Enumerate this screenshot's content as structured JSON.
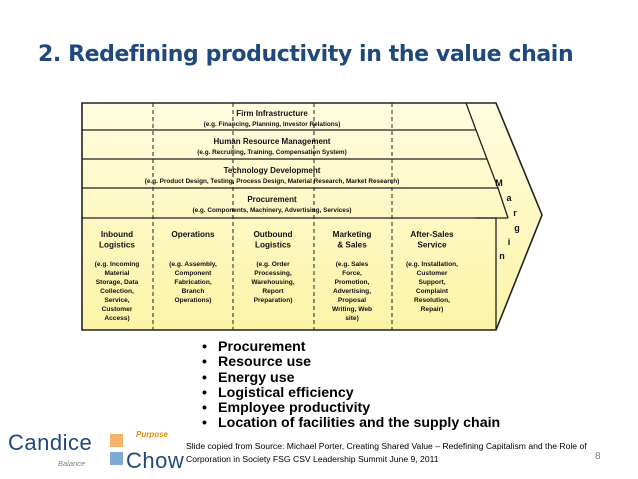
{
  "slide": {
    "title": "2. Redefining productivity in the value chain",
    "page_number": "8"
  },
  "diagram": {
    "support": [
      {
        "name": "Firm Infrastructure",
        "detail": "(e.g. Financing, Planning, Investor Relations)"
      },
      {
        "name": "Human Resource Management",
        "detail": "(e.g. Recruiting, Training, Compensation System)"
      },
      {
        "name": "Technology Development",
        "detail": "(e.g. Product Design, Testing, Process Design, Material Research, Market Research)"
      },
      {
        "name": "Procurement",
        "detail": "(e.g. Components, Machinery, Advertising, Services)"
      }
    ],
    "primary": [
      {
        "name": [
          "Inbound",
          "Logistics"
        ],
        "detail": [
          "(e.g. Incoming",
          "Material",
          "Storage, Data",
          "Collection,",
          "Service,",
          "Customer",
          "Access)"
        ]
      },
      {
        "name": [
          "Operations"
        ],
        "detail": [
          "(e.g. Assembly,",
          "Component",
          "Fabrication,",
          "Branch",
          "Operations)"
        ]
      },
      {
        "name": [
          "Outbound",
          "Logistics"
        ],
        "detail": [
          "(e.g. Order",
          "Processing,",
          "Warehousing,",
          "Report",
          "Preparation)"
        ]
      },
      {
        "name": [
          "Marketing",
          "& Sales"
        ],
        "detail": [
          "(e.g. Sales",
          "Force,",
          "Promotion,",
          "Advertising,",
          "Proposal",
          "Writing, Web",
          "site)"
        ]
      },
      {
        "name": [
          "After-Sales",
          "Service"
        ],
        "detail": [
          "(e.g. Installation,",
          "Customer",
          "Support,",
          "Complaint",
          "Resolution,",
          "Repair)"
        ]
      }
    ],
    "margin_letters": [
      "M",
      "a",
      "r",
      "g",
      "i",
      "n"
    ]
  },
  "bullets": [
    "Procurement",
    "Resource use",
    "Energy use",
    "Logistical efficiency",
    "Employee productivity",
    "Location of facilities and the supply chain"
  ],
  "source": {
    "line1": "Slide copied from Source: Michael Porter, Creating Shared Value – Redefining Capitalism and the Role of",
    "line2": "Corporation in Society FSG CSV Leadership Summit June 9, 2011"
  },
  "logo": {
    "word1": "Candice",
    "word2": "Chow",
    "tag1": "Purpose",
    "tag2": "Balance"
  },
  "colors": {
    "title": "#1f497d",
    "diagram_fill": "#fefcc4",
    "logo_orange": "#f6b26b",
    "logo_blue": "#7eaad6"
  }
}
